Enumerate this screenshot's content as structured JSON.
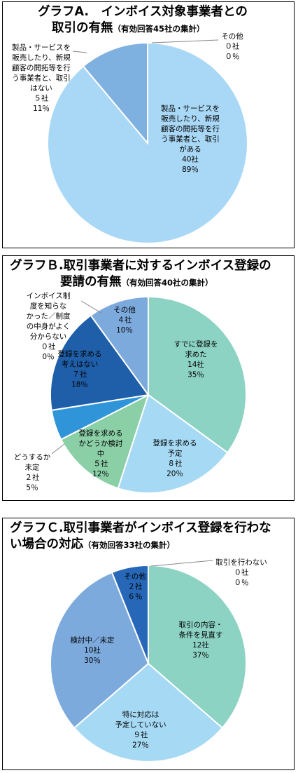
{
  "chart_data": [
    {
      "type": "pie",
      "title_main": "グラフA.　インボイス対象事業者との",
      "title_line2": "取引の有無",
      "title_note": "（有効回答45社の集計）",
      "slices": [
        {
          "label": "製品・サービスを販売したり、新規顧客の開拓等を行う事業者と、取引がある",
          "label_lines": [
            "製品・サービスを",
            "販売したり、新規",
            "顧客の開拓等を行",
            "う事業者と、取引",
            "がある",
            "40社",
            "89％"
          ],
          "value": 40,
          "pct": 89,
          "color": "#a9d8f6"
        },
        {
          "label": "製品・サービスを販売したり、新規顧客の開拓等を行う事業者と、取引はない",
          "label_lines": [
            "製品・サービスを",
            "販売したり、新規",
            "顧客の開拓等を行",
            "う事業者と、取引",
            "はない",
            "５社",
            "11％"
          ],
          "value": 5,
          "pct": 11,
          "color": "#7eb0e0"
        },
        {
          "label": "その他",
          "label_lines": [
            "その他",
            "０社",
            "０％"
          ],
          "value": 0,
          "pct": 0,
          "color": "#4a7fc5"
        }
      ]
    },
    {
      "type": "pie",
      "title_main": "グラフＢ.取引事業者に対するインボイス登録の",
      "title_line2": "要請の有無",
      "title_note": "（有効回答40社の集計）",
      "slices": [
        {
          "label": "すでに登録を求めた",
          "label_lines": [
            "すでに登録を",
            "求めた",
            "14社",
            "35％"
          ],
          "value": 14,
          "pct": 35,
          "color": "#8cd3c3"
        },
        {
          "label": "登録を求める予定",
          "label_lines": [
            "登録を求める",
            "予定",
            "８社",
            "20％"
          ],
          "value": 8,
          "pct": 20,
          "color": "#a6d9f4"
        },
        {
          "label": "登録を求めるかどうか検討中",
          "label_lines": [
            "登録を求める",
            "かどうか検討",
            "中",
            "５社",
            "12％"
          ],
          "value": 5,
          "pct": 12,
          "color": "#8bcfa7"
        },
        {
          "label": "どうするか未定",
          "label_lines": [
            "どうするか",
            "未定",
            "２社",
            "5％"
          ],
          "value": 2,
          "pct": 5,
          "color": "#2f95d8"
        },
        {
          "label": "登録を求める考えはない",
          "label_lines": [
            "登録を求める",
            "考えはない",
            "７社",
            "18％"
          ],
          "value": 7,
          "pct": 18,
          "color": "#1f5ea8"
        },
        {
          "label": "インボイス制度を知らなかった／制度の中身がよく分からない",
          "label_lines": [
            "インボイス制",
            "度を知らな",
            "かった／制度",
            "の中身がよく",
            "分からない",
            "０社",
            "0％"
          ],
          "value": 0,
          "pct": 0,
          "color": "#aaaaaa"
        },
        {
          "label": "その他",
          "label_lines": [
            "その他",
            "４社",
            "10％"
          ],
          "value": 4,
          "pct": 10,
          "color": "#7caadd"
        }
      ]
    },
    {
      "type": "pie",
      "title_main": "グラフＣ.取引事業者がインボイス登録を行わな",
      "title_line2": "い場合の対応",
      "title_note": "（有効回答33社の集計）",
      "slices": [
        {
          "label": "取引の内容・条件を見直す",
          "label_lines": [
            "取引の内容・",
            "条件を見直す",
            "12社",
            "37％"
          ],
          "value": 12,
          "pct": 37,
          "color": "#8cd3c3"
        },
        {
          "label": "特に対応は予定していない",
          "label_lines": [
            "特に対応は",
            "予定していない",
            "９社",
            "27％"
          ],
          "value": 9,
          "pct": 27,
          "color": "#a6d9f4"
        },
        {
          "label": "検討中／未定",
          "label_lines": [
            "検討中／未定",
            "10社",
            "30％"
          ],
          "value": 10,
          "pct": 30,
          "color": "#7caadd"
        },
        {
          "label": "その他",
          "label_lines": [
            "その他",
            "２社",
            "６％"
          ],
          "value": 2,
          "pct": 6,
          "color": "#2667b8"
        },
        {
          "label": "取引を行わない",
          "label_lines": [
            "取引を行わない",
            "０社",
            "０％"
          ],
          "value": 0,
          "pct": 0,
          "color": "#1b4f99"
        }
      ]
    }
  ]
}
